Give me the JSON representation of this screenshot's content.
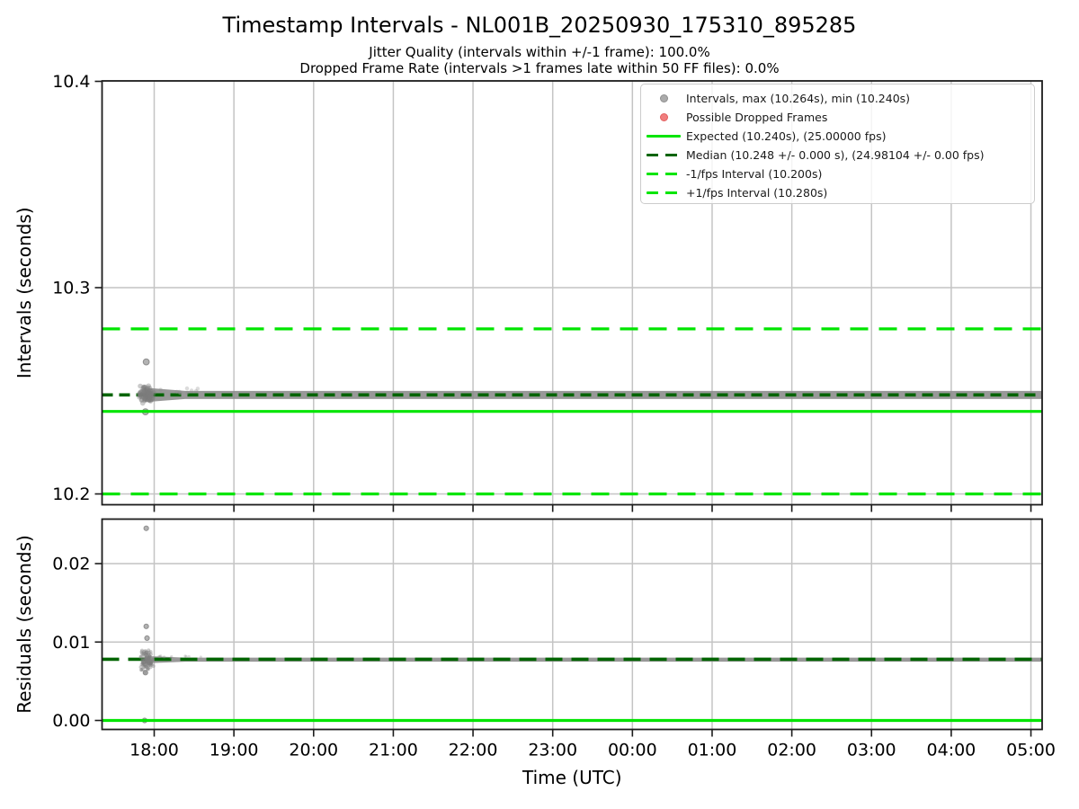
{
  "figure": {
    "title": "Timestamp Intervals - NL001B_20250930_175310_895285",
    "subtitle_jitter": "Jitter Quality (intervals within +/-1 frame): 100.0%",
    "subtitle_dropped": "Dropped Frame Rate (intervals >1 frames late within 50 FF files): 0.0%"
  },
  "chart_data": {
    "type": "scatter",
    "x_axis": {
      "label": "Time (UTC)",
      "ticks": [
        "18:00",
        "19:00",
        "20:00",
        "21:00",
        "22:00",
        "23:00",
        "00:00",
        "01:00",
        "02:00",
        "03:00",
        "04:00",
        "05:00"
      ],
      "tick_hours": [
        18,
        19,
        20,
        21,
        22,
        23,
        24,
        25,
        26,
        27,
        28,
        29
      ],
      "range_hours": [
        17.345,
        29.15
      ]
    },
    "stats": {
      "jitter_quality_pct": 100.0,
      "dropped_frame_rate_pct": 0.0,
      "max_interval_s": 10.264,
      "min_interval_s": 10.24,
      "expected_interval_s": 10.24,
      "expected_fps": "25.00000",
      "median_interval_s": 10.248,
      "median_fps": "24.98104",
      "minus_1fps_interval_s": 10.2,
      "plus_1fps_interval_s": 10.28
    },
    "panels": [
      {
        "name": "intervals",
        "ylabel": "Intervals (seconds)",
        "ytick_labels": [
          "10.2",
          "10.3",
          "10.4"
        ],
        "yticks": [
          10.2,
          10.3,
          10.4
        ],
        "ylim": [
          10.1948,
          10.4002
        ],
        "lines": [
          {
            "name": "minus-1fps-line",
            "value": 10.2,
            "style": "dashed",
            "color": "lime"
          },
          {
            "name": "plus-1fps-line",
            "value": 10.28,
            "style": "dashed",
            "color": "lime"
          },
          {
            "name": "expected-line",
            "value": 10.24,
            "style": "solid",
            "color": "lime"
          },
          {
            "name": "median-line",
            "value": 10.248,
            "style": "dashed",
            "color": "darkgreen"
          }
        ],
        "band": {
          "start_hour": 17.88,
          "end_hour": 29.15,
          "value": 10.248,
          "half_width": 0.00196
        },
        "cluster": {
          "hour": 17.9,
          "hour_spread": 0.1,
          "vmin": 10.2425,
          "vmax": 10.254,
          "n": 90,
          "radius": 2.8
        },
        "outliers": [
          {
            "hour": 17.9,
            "value": 10.264
          },
          {
            "hour": 17.89,
            "value": 10.2398
          }
        ]
      },
      {
        "name": "residuals",
        "ylabel": "Residuals (seconds)",
        "ytick_labels": [
          "0.00",
          "0.01",
          "0.02"
        ],
        "yticks": [
          0.0,
          0.01,
          0.02
        ],
        "ylim": [
          -0.00115,
          0.02567
        ],
        "lines": [
          {
            "name": "zero-line",
            "value": 0.0,
            "style": "solid",
            "color": "lime"
          },
          {
            "name": "median-residual-line",
            "value": 0.0078,
            "style": "dashed",
            "color": "darkgreen"
          }
        ],
        "band": {
          "start_hour": 17.88,
          "end_hour": 29.15,
          "value": 0.00775,
          "half_width": 0.00026
        },
        "cluster": {
          "hour": 17.9,
          "hour_spread": 0.1,
          "vmin": 0.0058,
          "vmax": 0.0093,
          "n": 90,
          "radius": 2.0
        },
        "outliers": [
          {
            "hour": 17.9,
            "value": 0.0245
          },
          {
            "hour": 17.9,
            "value": 0.012
          },
          {
            "hour": 17.91,
            "value": 0.0105
          },
          {
            "hour": 17.89,
            "value": 0.0061
          },
          {
            "hour": 17.88,
            "value": 0.0
          }
        ]
      }
    ],
    "legend": [
      {
        "marker": "dot",
        "color": "#ababab",
        "edge": "#8f8f8f",
        "label": "Intervals, max (10.264s), min (10.240s)"
      },
      {
        "marker": "dot",
        "color": "#f07e7e",
        "edge": "#e35f5f",
        "label": "Possible Dropped Frames"
      },
      {
        "marker": "line-solid",
        "color": "#00e500",
        "label": "Expected (10.240s), (25.00000 fps)"
      },
      {
        "marker": "line-dashed",
        "color": "#006400",
        "label": "Median (10.248 +/- 0.000 s), (24.98104 +/- 0.00 fps)"
      },
      {
        "marker": "line-dashed",
        "color": "#00e500",
        "label": "-1/fps Interval (10.200s)"
      },
      {
        "marker": "line-dashed",
        "color": "#00e500",
        "label": "+1/fps Interval (10.280s)"
      }
    ],
    "colors": {
      "lime": "#00e500",
      "darkgreen": "#006400",
      "scatter": "#8a8a8a",
      "grid": "#c4c4c4",
      "axis": "#1c1c1c"
    }
  }
}
